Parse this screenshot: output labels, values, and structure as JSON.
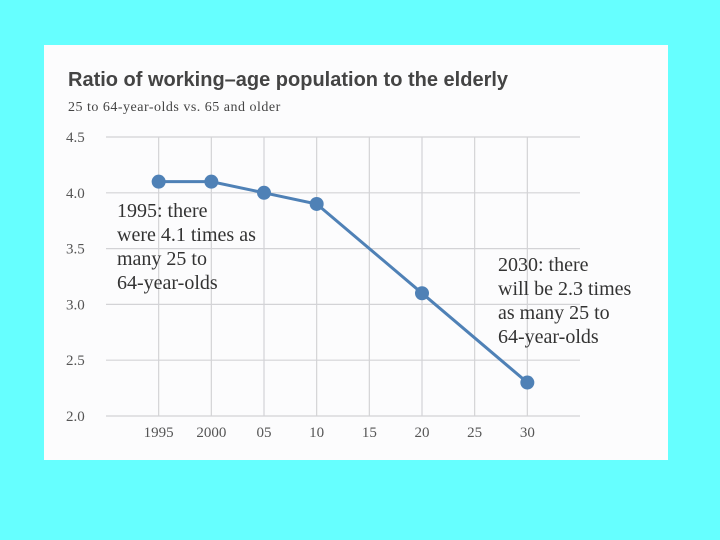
{
  "chart_data": {
    "type": "line",
    "title": "Ratio of working–age population to the elderly",
    "subtitle": "25 to 64-year-olds vs. 65 and older",
    "x": [
      1995,
      2000,
      2005,
      2010,
      2020,
      2030
    ],
    "y": [
      4.1,
      4.1,
      4.0,
      3.9,
      3.1,
      2.3
    ],
    "xlim": [
      1990,
      2035
    ],
    "ylim": [
      2.0,
      4.5
    ],
    "x_ticks": [
      1995,
      2000,
      2005,
      2010,
      2015,
      2020,
      2025,
      2030
    ],
    "x_tick_labels": [
      "1995",
      "2000",
      "05",
      "10",
      "15",
      "20",
      "25",
      "30"
    ],
    "y_ticks": [
      2.0,
      2.5,
      3.0,
      3.5,
      4.0,
      4.5
    ],
    "y_tick_labels": [
      "2.0",
      "2.5",
      "3.0",
      "3.5",
      "4.0",
      "4.5"
    ],
    "grid": true,
    "annotations": [
      {
        "lines": [
          "1995: there",
          "were 4.1 times as",
          "many 25 to",
          "64-year-olds"
        ]
      },
      {
        "lines": [
          "2030: there",
          "will be 2.3 times",
          "as many 25 to",
          "64-year-olds"
        ]
      }
    ],
    "colors": {
      "line": "#4f81b6",
      "grid": "#d3d3d6",
      "background": "#66ffff",
      "card": "#fcfcfd"
    }
  }
}
